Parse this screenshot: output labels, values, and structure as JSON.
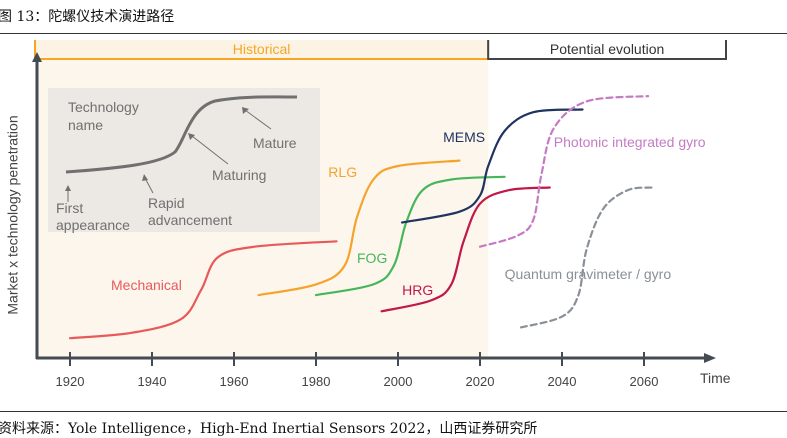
{
  "figure": {
    "title": "图 13：陀螺仪技术演进路径",
    "source": "资料来源：Yole Intelligence，High-End Inertial Sensors 2022，山西证券研究所"
  },
  "chart_data": {
    "type": "line",
    "title": "",
    "xlabel": "Time",
    "ylabel": "Market x technology penetration",
    "xlim": [
      1908,
      2076
    ],
    "ylim": [
      0,
      100
    ],
    "xticks": [
      1920,
      1940,
      1960,
      1980,
      2000,
      2020,
      2040,
      2060
    ],
    "xtick_labels": [
      "1920",
      "1940",
      "1960",
      "1980",
      "2000",
      "2020",
      "2040",
      "2060"
    ],
    "grid": false,
    "periods": [
      {
        "label": "Historical",
        "start": 1908,
        "end": 2022,
        "color": "#f5a623"
      },
      {
        "label": "Potential evolution",
        "start": 2022,
        "end": 2080,
        "color": "#444444"
      }
    ],
    "series": [
      {
        "name": "Mechanical",
        "color": "#e8595a",
        "dashed": false,
        "points": [
          [
            1920,
            7
          ],
          [
            1935,
            9
          ],
          [
            1947,
            14
          ],
          [
            1952,
            25
          ],
          [
            1956,
            37
          ],
          [
            1965,
            41
          ],
          [
            1985,
            43
          ]
        ]
      },
      {
        "name": "RLG",
        "color": "#f5a32a",
        "dashed": false,
        "points": [
          [
            1966,
            23
          ],
          [
            1980,
            27
          ],
          [
            1987,
            34
          ],
          [
            1990,
            52
          ],
          [
            1994,
            66
          ],
          [
            2000,
            71
          ],
          [
            2015,
            73
          ]
        ]
      },
      {
        "name": "FOG",
        "color": "#46b65a",
        "dashed": false,
        "points": [
          [
            1980,
            23
          ],
          [
            1994,
            27
          ],
          [
            1999,
            34
          ],
          [
            2002,
            50
          ],
          [
            2006,
            62
          ],
          [
            2013,
            66
          ],
          [
            2026,
            67
          ]
        ]
      },
      {
        "name": "MEMS",
        "color": "#1f3461",
        "dashed": false,
        "points": [
          [
            2001,
            50
          ],
          [
            2015,
            54
          ],
          [
            2020,
            60
          ],
          [
            2022,
            71
          ],
          [
            2026,
            84
          ],
          [
            2033,
            91
          ],
          [
            2045,
            92
          ]
        ]
      },
      {
        "name": "HRG",
        "color": "#c2174a",
        "dashed": false,
        "points": [
          [
            1996,
            17
          ],
          [
            2008,
            21
          ],
          [
            2013,
            27
          ],
          [
            2016,
            43
          ],
          [
            2020,
            57
          ],
          [
            2027,
            62
          ],
          [
            2037,
            63
          ]
        ]
      },
      {
        "name": "Photonic integrated gyro",
        "color": "#c57bc4",
        "dashed": true,
        "points": [
          [
            2020,
            41
          ],
          [
            2029,
            45
          ],
          [
            2033,
            51
          ],
          [
            2035,
            68
          ],
          [
            2038,
            85
          ],
          [
            2046,
            95
          ],
          [
            2061,
            97
          ]
        ]
      },
      {
        "name": "Quantum gravimeter / gyro",
        "color": "#8a9097",
        "dashed": true,
        "points": [
          [
            2030,
            11
          ],
          [
            2040,
            15
          ],
          [
            2044,
            23
          ],
          [
            2046,
            40
          ],
          [
            2050,
            55
          ],
          [
            2056,
            62
          ],
          [
            2062,
            63
          ]
        ]
      }
    ],
    "legend_inset": {
      "title": "Technology name",
      "stages": [
        "First appearance",
        "Rapid advancement",
        "Maturing",
        "Mature"
      ]
    }
  }
}
